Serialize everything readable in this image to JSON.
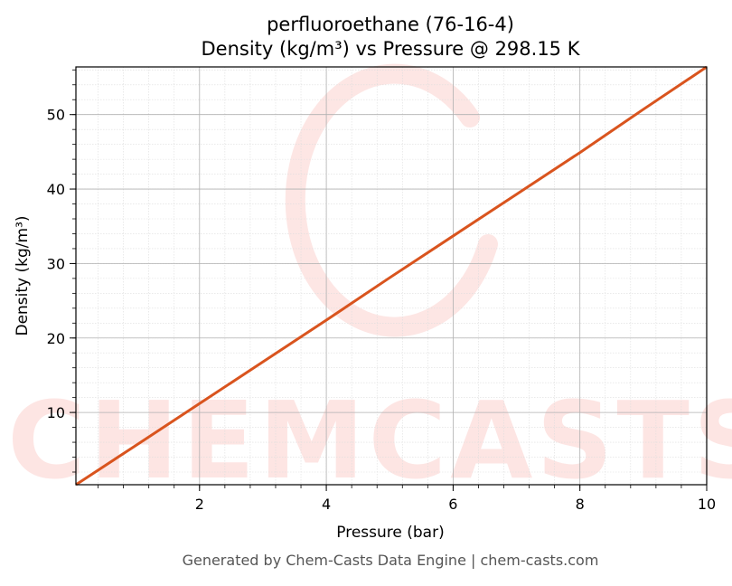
{
  "chart_data": {
    "type": "line",
    "title_line1": "perfluoroethane (76-16-4)",
    "title_line2": "Density (kg/m³) vs Pressure @ 298.15 K",
    "xlabel": "Pressure (bar)",
    "ylabel": "Density (kg/m³)",
    "xlim": [
      0.05,
      10.0
    ],
    "ylim": [
      0.3,
      56.4
    ],
    "x_ticks": [
      2,
      4,
      6,
      8,
      10
    ],
    "y_ticks": [
      10,
      20,
      30,
      40,
      50
    ],
    "grid": true,
    "series": [
      {
        "color": "#d9541e",
        "x": [
          0.05,
          1.0,
          2.0,
          3.0,
          4.0,
          5.0,
          6.0,
          7.0,
          8.0,
          9.0,
          10.0
        ],
        "y": [
          0.3,
          5.6,
          11.2,
          16.8,
          22.4,
          28.1,
          33.7,
          39.3,
          44.9,
          50.7,
          56.4
        ]
      }
    ]
  },
  "watermark": {
    "text": "CHEMCASTS",
    "color": "#fde3e1"
  },
  "footer": {
    "text": "Generated by Chem-Casts Data Engine | chem-casts.com"
  }
}
